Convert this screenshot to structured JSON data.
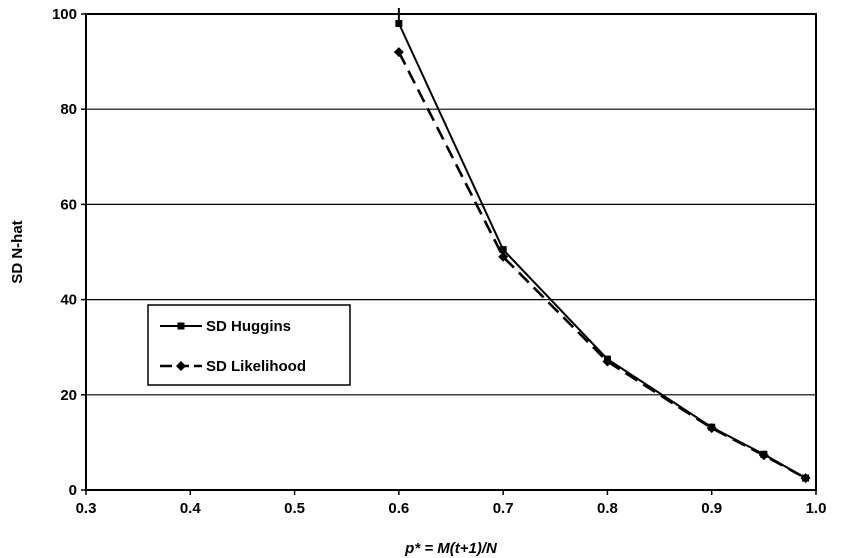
{
  "chart_data": {
    "type": "line",
    "xlabel": "p* = M(t+1)/N",
    "ylabel": "SD N-hat",
    "xlim": [
      0.3,
      1.0
    ],
    "ylim": [
      0,
      100
    ],
    "x_ticks": [
      "0.3",
      "0.4",
      "0.5",
      "0.6",
      "0.7",
      "0.8",
      "0.9",
      "1.0"
    ],
    "y_ticks": [
      "0",
      "20",
      "40",
      "60",
      "80",
      "100"
    ],
    "grid": "horizontal",
    "legend_position": "left-middle",
    "series": [
      {
        "name": "SD Huggins",
        "line_style": "solid",
        "marker": "square",
        "color": "#000000",
        "x": [
          0.6,
          0.7,
          0.8,
          0.9,
          0.95,
          0.99
        ],
        "y": [
          98,
          50.5,
          27.5,
          13.2,
          7.5,
          2.5
        ]
      },
      {
        "name": "SD Likelihood",
        "line_style": "dashed",
        "marker": "diamond",
        "color": "#000000",
        "x": [
          0.6,
          0.7,
          0.8,
          0.9,
          0.95,
          0.99
        ],
        "y": [
          92,
          49,
          27,
          13,
          7.3,
          2.5
        ]
      }
    ]
  }
}
